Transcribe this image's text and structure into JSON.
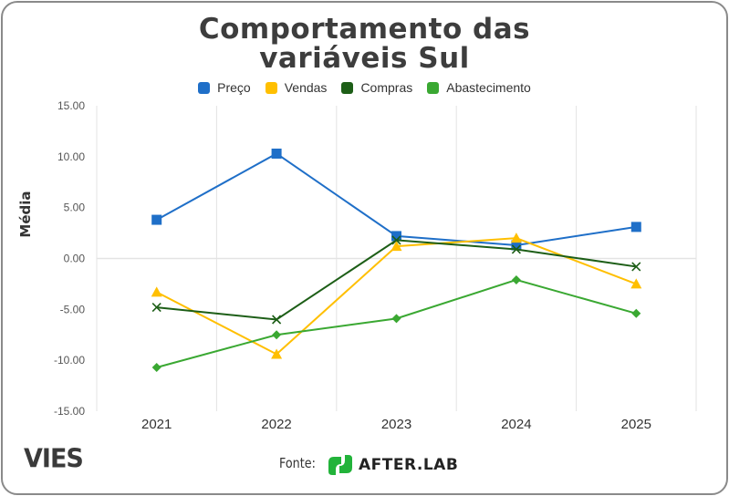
{
  "chart_data": {
    "type": "line",
    "title": "Comportamento das variáveis Sul",
    "title_lines": [
      "Comportamento das",
      "variáveis Sul"
    ],
    "xlabel": "",
    "ylabel": "Média",
    "categories": [
      "2021",
      "2022",
      "2023",
      "2024",
      "2025"
    ],
    "ylim": [
      -15,
      15
    ],
    "yticks": [
      15,
      10,
      5,
      0,
      -5,
      -10,
      -15
    ],
    "ytick_labels": [
      "15.00",
      "10.00",
      "5.00",
      "0.00",
      "-5.00",
      "-10.00",
      "-15.00"
    ],
    "grid": true,
    "legend_position": "top",
    "series": [
      {
        "name": "Preço",
        "color": "#1f6fc8",
        "marker": "square",
        "values": [
          3.8,
          10.3,
          2.2,
          1.3,
          3.1
        ]
      },
      {
        "name": "Vendas",
        "color": "#ffbf00",
        "marker": "triangle",
        "values": [
          -3.3,
          -9.4,
          1.2,
          2.0,
          -2.5
        ]
      },
      {
        "name": "Compras",
        "color": "#1d5e17",
        "marker": "x",
        "values": [
          -4.8,
          -6.0,
          1.8,
          0.9,
          -0.8
        ]
      },
      {
        "name": "Abastecimento",
        "color": "#3aa832",
        "marker": "diamond",
        "values": [
          -10.7,
          -7.5,
          -5.9,
          -2.1,
          -5.4
        ]
      }
    ]
  },
  "footer": {
    "brand": "VIES",
    "source_label": "Fonte:",
    "source_name": "AFTER.LAB",
    "source_logo_color": "#22b33a"
  }
}
